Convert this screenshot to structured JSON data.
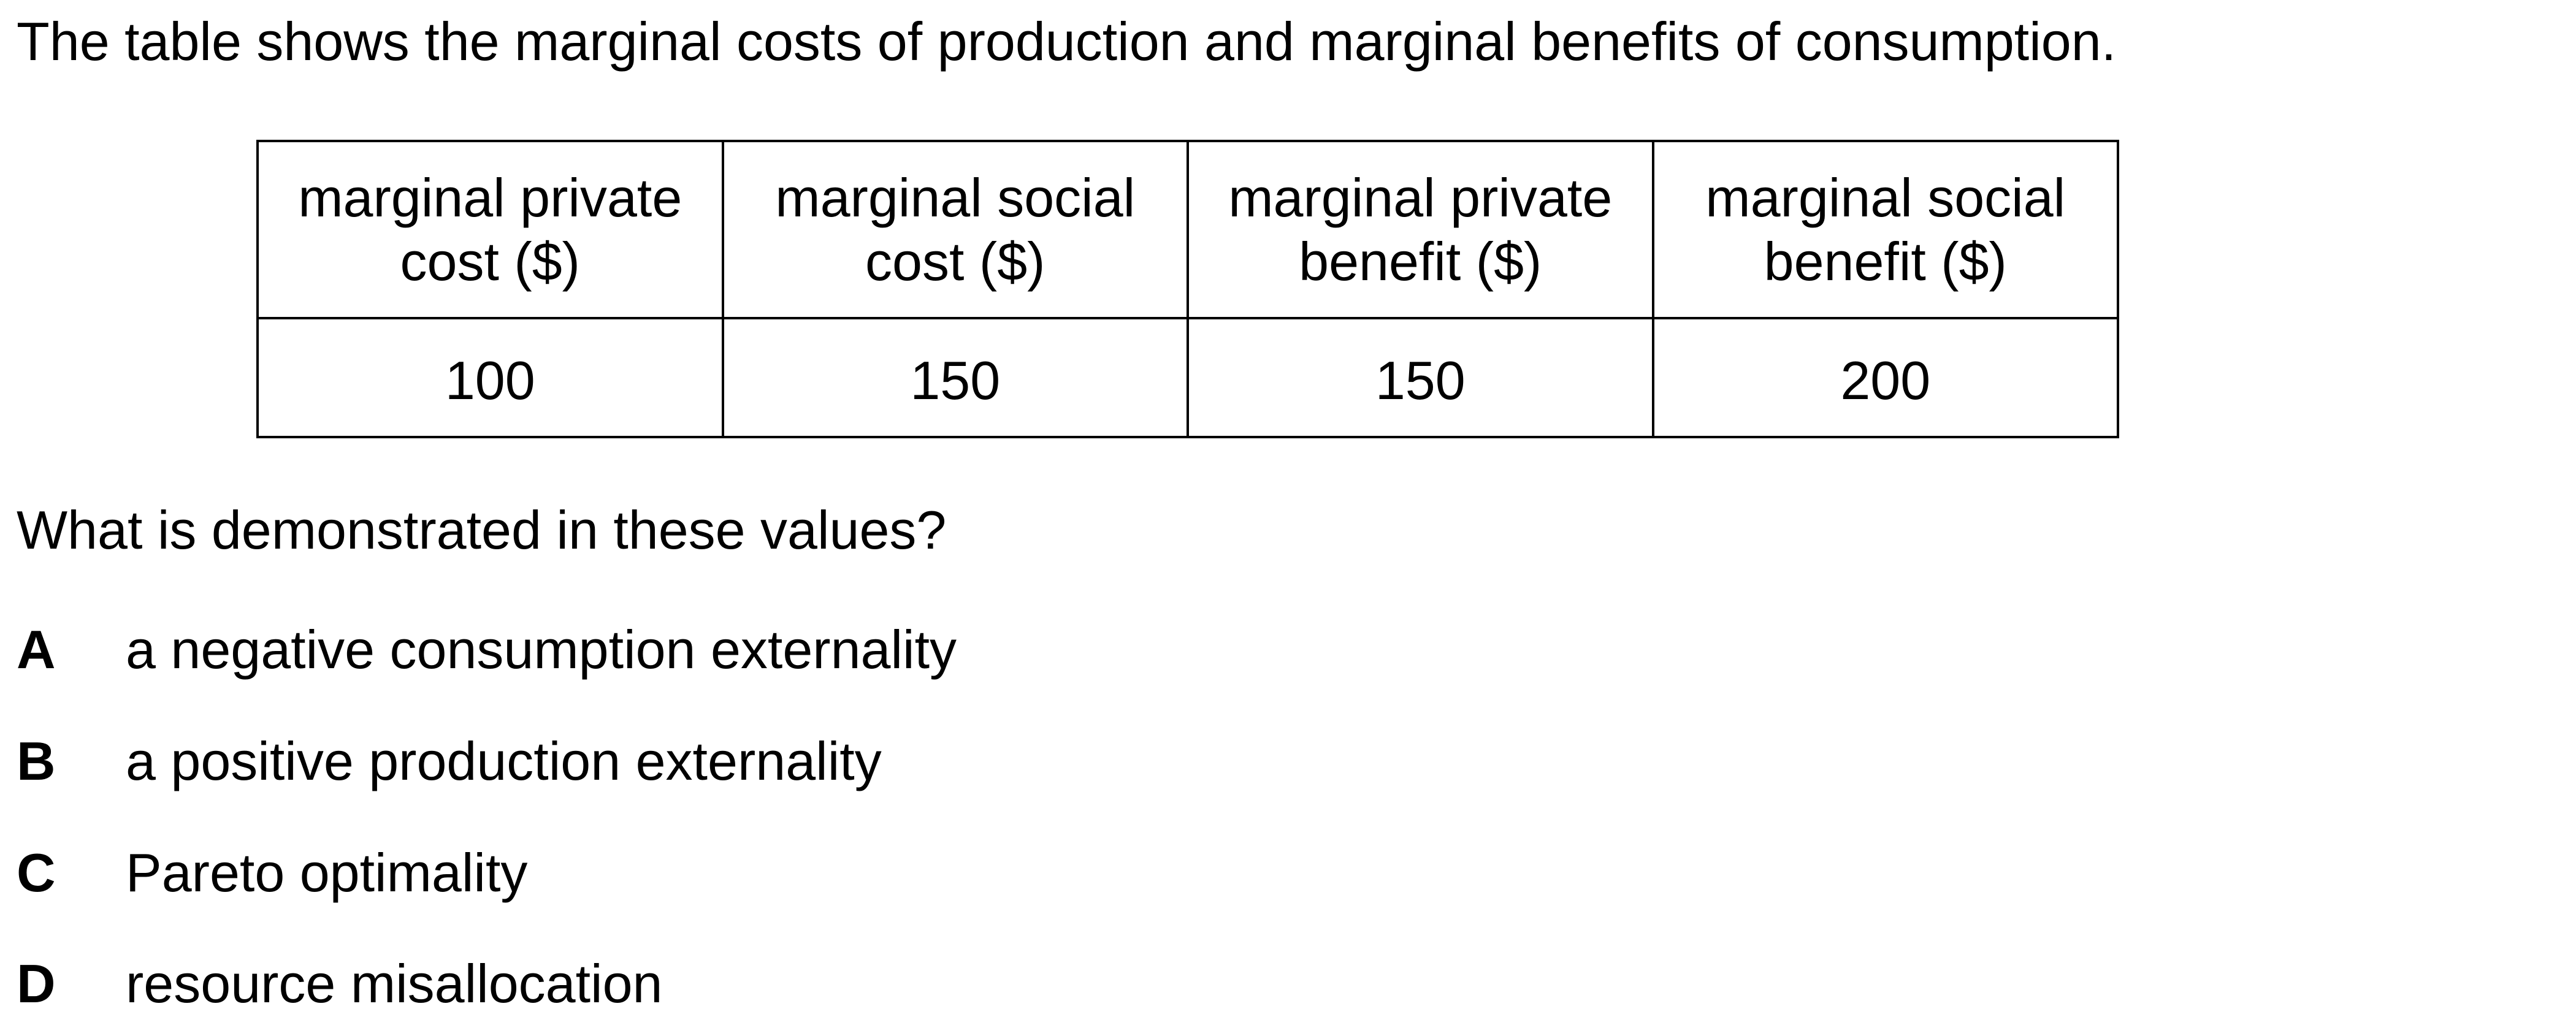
{
  "intro": "The table shows the marginal costs of production and marginal benefits of consumption.",
  "table": {
    "headers": [
      {
        "line1": "marginal private",
        "line2": "cost ($)"
      },
      {
        "line1": "marginal social",
        "line2": "cost ($)"
      },
      {
        "line1": "marginal private",
        "line2": "benefit ($)"
      },
      {
        "line1": "marginal social",
        "line2": "benefit ($)"
      }
    ],
    "values": [
      "100",
      "150",
      "150",
      "200"
    ]
  },
  "question": "What is demonstrated in these values?",
  "options": [
    {
      "letter": "A",
      "text": "a negative consumption externality"
    },
    {
      "letter": "B",
      "text": "a positive production externality"
    },
    {
      "letter": "C",
      "text": "Pareto optimality"
    },
    {
      "letter": "D",
      "text": "resource misallocation"
    }
  ]
}
